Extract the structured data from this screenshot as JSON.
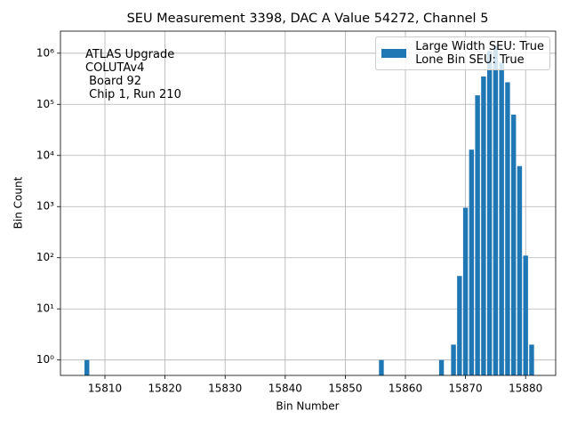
{
  "chart_data": {
    "type": "bar",
    "title": "SEU Measurement 3398, DAC A Value 54272, Channel 5",
    "x_label": "Bin Number",
    "y_label": "Bin Count",
    "annotation": "ATLAS Upgrade\nCOLUTAv4\n Board 92\n Chip 1, Run 210",
    "x": [
      15807,
      15856,
      15866,
      15868,
      15869,
      15870,
      15871,
      15872,
      15873,
      15874,
      15875,
      15876,
      15877,
      15878,
      15879,
      15880,
      15881
    ],
    "series": [
      {
        "name": "Large Width SEU: True\nLone Bin SEU: True",
        "color": "#1f77b4",
        "values": [
          1,
          1,
          1,
          2,
          44,
          950,
          13000,
          150000,
          350000,
          1100000,
          1400000,
          650000,
          270000,
          63000,
          6200,
          110,
          2
        ]
      }
    ],
    "xlim": [
      15802.6,
      15885
    ],
    "xticks": [
      15810,
      15820,
      15830,
      15840,
      15850,
      15860,
      15870,
      15880
    ],
    "ylim": [
      0.5,
      2700000
    ],
    "log_y": true,
    "yticks": [
      {
        "value": 1,
        "label": "10⁰"
      },
      {
        "value": 10,
        "label": "10¹"
      },
      {
        "value": 100,
        "label": "10²"
      },
      {
        "value": 1000,
        "label": "10³"
      },
      {
        "value": 10000,
        "label": "10⁴"
      },
      {
        "value": 100000,
        "label": "10⁵"
      },
      {
        "value": 1000000,
        "label": "10⁶"
      }
    ],
    "grid": true,
    "legend": "upper right"
  }
}
